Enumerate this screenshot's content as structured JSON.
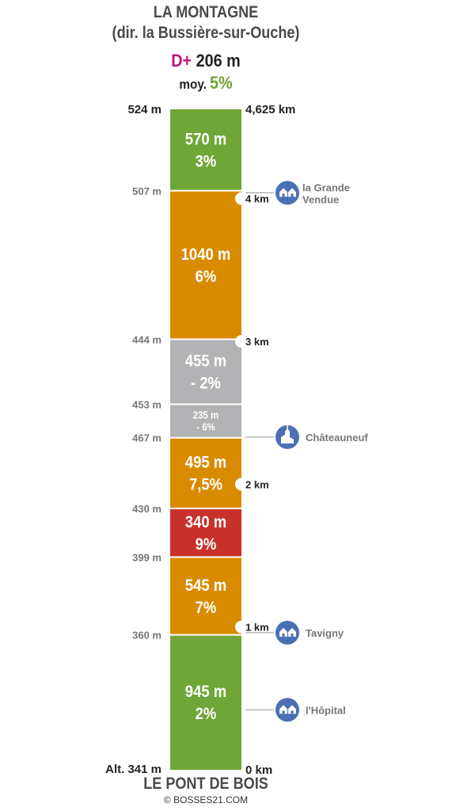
{
  "header": {
    "title": "LA MONTAGNE",
    "subtitle": "(dir. la Bussière-sur-Ouche)",
    "dplus_label": "D+",
    "dplus_value": "206 m",
    "avg_label": "moy.",
    "avg_value": "5%"
  },
  "footer": {
    "start_name": "LE PONT DE BOIS",
    "credit": "© BOSSES21.COM"
  },
  "colors": {
    "green": "#70a637",
    "orange": "#d98b00",
    "grey": "#b3b3b6",
    "red": "#c8312b",
    "poi_blue": "#4b6fb3",
    "accent_pink": "#c0127a"
  },
  "chart_data": {
    "type": "bar",
    "orientation": "vertical-stacked-segments",
    "total_distance_km": 4.625,
    "segments": [
      {
        "length_m": 945,
        "length_label": "945 m",
        "grade_label": "2%",
        "grade": 2,
        "color": "green"
      },
      {
        "length_m": 545,
        "length_label": "545 m",
        "grade_label": "7%",
        "grade": 7,
        "color": "orange"
      },
      {
        "length_m": 340,
        "length_label": "340 m",
        "grade_label": "9%",
        "grade": 9,
        "color": "red"
      },
      {
        "length_m": 495,
        "length_label": "495 m",
        "grade_label": "7,5%",
        "grade": 7.5,
        "color": "orange"
      },
      {
        "length_m": 235,
        "length_label": "235 m",
        "grade_label": "- 6%",
        "grade": -6,
        "color": "grey",
        "small": true
      },
      {
        "length_m": 455,
        "length_label": "455 m",
        "grade_label": "- 2%",
        "grade": -2,
        "color": "grey"
      },
      {
        "length_m": 1040,
        "length_label": "1040 m",
        "grade_label": "6%",
        "grade": 6,
        "color": "orange"
      },
      {
        "length_m": 570,
        "length_label": "570 m",
        "grade_label": "3%",
        "grade": 3,
        "color": "green"
      }
    ],
    "altitudes": [
      {
        "km": 0,
        "label": "Alt. 341 m",
        "strong": true
      },
      {
        "km": 0.945,
        "label": "360 m"
      },
      {
        "km": 1.49,
        "label": "399 m"
      },
      {
        "km": 1.83,
        "label": "430 m"
      },
      {
        "km": 2.325,
        "label": "467 m"
      },
      {
        "km": 2.56,
        "label": "453 m"
      },
      {
        "km": 3.015,
        "label": "444 m"
      },
      {
        "km": 4.055,
        "label": "507 m"
      },
      {
        "km": 4.625,
        "label": "524 m",
        "strong": true
      }
    ],
    "km_marks": [
      {
        "km": 0,
        "label": "0 km",
        "notch": false
      },
      {
        "km": 1,
        "label": "1 km",
        "notch": true
      },
      {
        "km": 2,
        "label": "2 km",
        "notch": true
      },
      {
        "km": 3,
        "label": "3 km",
        "notch": true
      },
      {
        "km": 4,
        "label": "4 km",
        "notch": true
      },
      {
        "km": 4.625,
        "label": "4,625 km",
        "notch": false
      }
    ],
    "places": [
      {
        "km": 0.42,
        "name": "l'Hôpital",
        "icon": "houses-icon"
      },
      {
        "km": 0.96,
        "name": "Tavigny",
        "icon": "houses-icon"
      },
      {
        "km": 2.33,
        "name": "Châteauneuf",
        "icon": "church-icon"
      },
      {
        "km": 4.04,
        "name": "la Grande",
        "name2": "Vendue",
        "icon": "houses-icon"
      }
    ]
  }
}
